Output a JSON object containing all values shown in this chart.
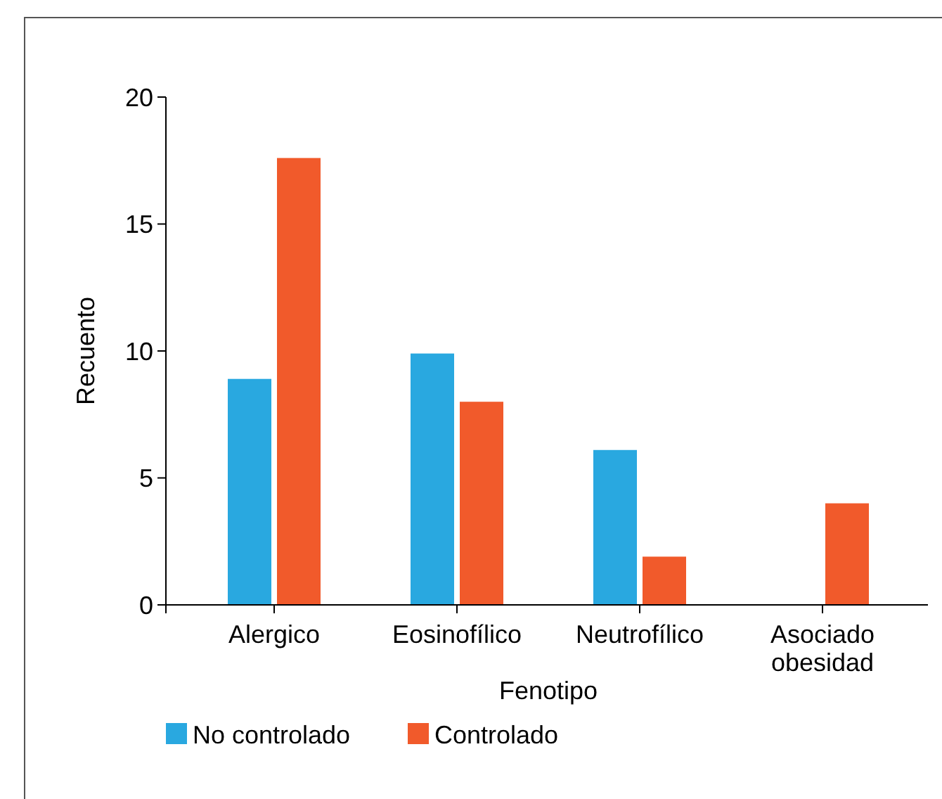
{
  "chart_data": {
    "type": "bar",
    "xlabel": "Fenotipo",
    "ylabel": "Recuento",
    "categories": [
      "Alergico",
      "Eosinofílico",
      "Neutrofílico",
      "Asociado obesidad"
    ],
    "series": [
      {
        "name": "No controlado",
        "color": "#29a8e0",
        "values": [
          8.9,
          9.9,
          6.1,
          0
        ]
      },
      {
        "name": "Controlado",
        "color": "#f15a2b",
        "values": [
          17.6,
          8.0,
          1.9,
          4.0
        ]
      }
    ],
    "ylim": [
      0,
      20
    ],
    "yticks": [
      0,
      5,
      10,
      15,
      20
    ],
    "grid": false,
    "legend": "bottom left"
  }
}
